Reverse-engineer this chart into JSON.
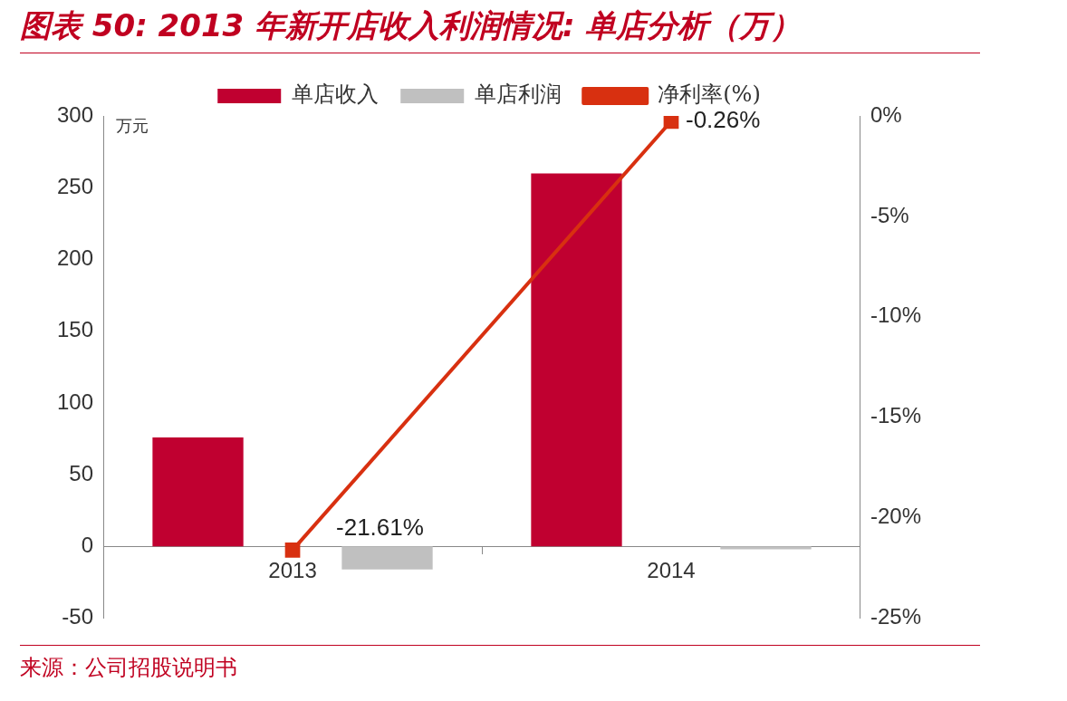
{
  "chart_data": {
    "type": "bar",
    "title": "图表 50: 2013 年新开店收入利润情况: 单店分析（万）",
    "categories": [
      "2013",
      "2014"
    ],
    "series": [
      {
        "name": "单店收入",
        "color": "#c00030",
        "values": [
          76,
          260
        ]
      },
      {
        "name": "单店利润",
        "color": "#c0c0c0",
        "values": [
          -16,
          -2
        ]
      },
      {
        "name": "净利率(%)",
        "type": "line",
        "axis": "y2",
        "color": "#d83010",
        "marker": "square",
        "values": [
          -21.61,
          -0.26
        ],
        "value_labels": [
          "-21.61%",
          "-0.26%"
        ]
      }
    ],
    "ylabel": "万元",
    "ylim": [
      -50,
      300
    ],
    "yticks": [
      -50,
      0,
      50,
      100,
      150,
      200,
      250,
      300
    ],
    "y2lim": [
      -25,
      0
    ],
    "y2ticks": [
      {
        "value": -25,
        "label": "-25%"
      },
      {
        "value": -20,
        "label": "-20%"
      },
      {
        "value": -15,
        "label": "-15%"
      },
      {
        "value": -10,
        "label": "-10%"
      },
      {
        "value": -5,
        "label": "-5%"
      },
      {
        "value": 0,
        "label": "0%"
      }
    ],
    "grid": false,
    "legend": "top",
    "annotations": [
      "来源：公司招股说明书"
    ]
  }
}
